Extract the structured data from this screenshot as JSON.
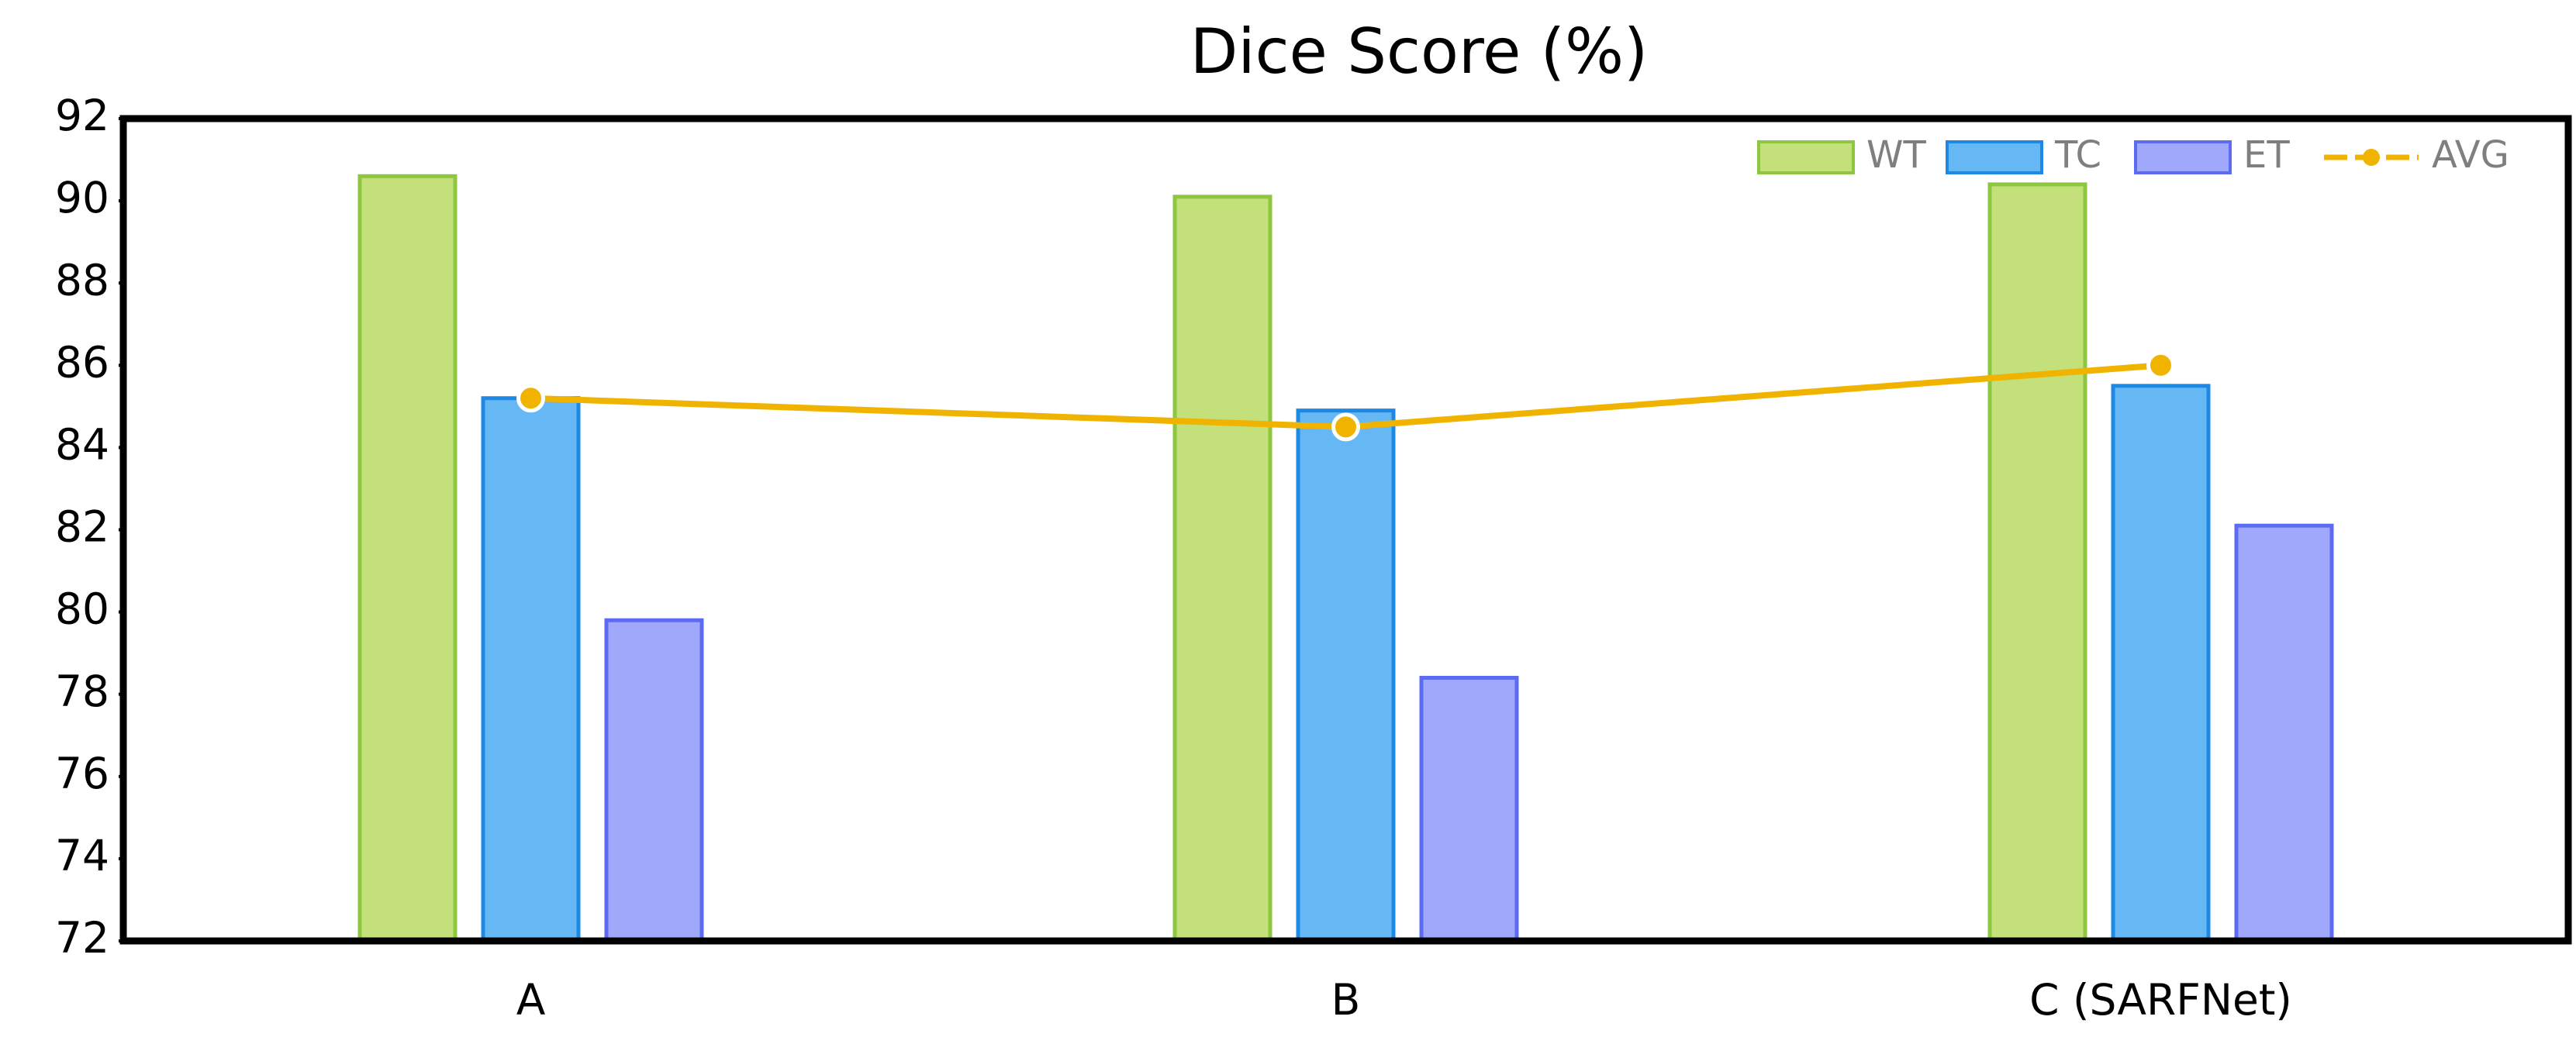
{
  "chart_data": {
    "type": "bar",
    "title": "Dice Score (%)",
    "categories": [
      "A",
      "B",
      "C (SARFNet)"
    ],
    "series": [
      {
        "name": "WT",
        "type": "bar",
        "color": "#c3e07a",
        "stroke": "#8dc63f",
        "values": [
          90.6,
          90.1,
          90.4
        ]
      },
      {
        "name": "TC",
        "type": "bar",
        "color": "#66b8f5",
        "stroke": "#1e88e5",
        "values": [
          85.2,
          84.9,
          85.5
        ]
      },
      {
        "name": "ET",
        "type": "bar",
        "color": "#9fa8fb",
        "stroke": "#5c6bf0",
        "values": [
          79.8,
          78.4,
          82.1
        ]
      },
      {
        "name": "AVG",
        "type": "line",
        "color": "#f0b400",
        "values": [
          85.2,
          84.5,
          86.0
        ]
      }
    ],
    "ylim": [
      72,
      92
    ],
    "yticks": [
      72,
      74,
      76,
      78,
      80,
      82,
      84,
      86,
      88,
      90,
      92
    ],
    "grid": false,
    "legend": "top-right"
  }
}
